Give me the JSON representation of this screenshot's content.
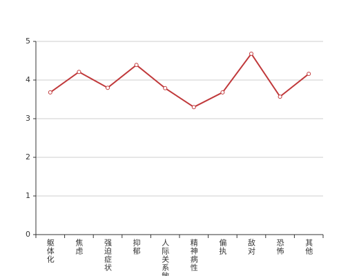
{
  "chart_data": {
    "type": "line",
    "categories": [
      "躯体化",
      "焦虑",
      "强迫症状",
      "抑郁",
      "人际关系敏感",
      "精神病性",
      "偏执",
      "敌对",
      "恐怖",
      "其他"
    ],
    "series": [
      {
        "color": "#c0393b",
        "values": [
          3.68,
          4.21,
          3.8,
          4.39,
          3.79,
          3.3,
          3.68,
          4.68,
          3.57,
          4.16
        ]
      }
    ],
    "ylim": [
      0,
      5
    ],
    "yticks": [
      0,
      1,
      2,
      3,
      4,
      5
    ],
    "grid": true
  }
}
